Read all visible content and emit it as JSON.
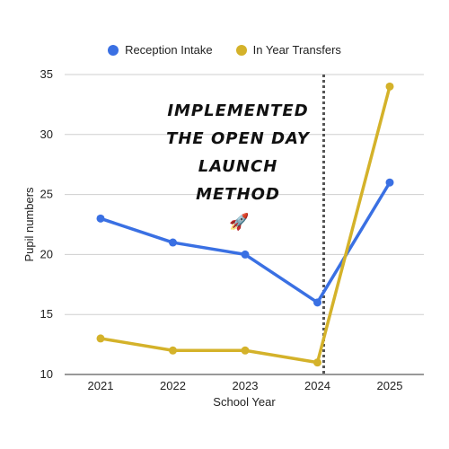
{
  "chart_data": {
    "type": "line",
    "title": "",
    "xlabel": "School Year",
    "ylabel": "Pupil numbers",
    "categories": [
      "2021",
      "2022",
      "2023",
      "2024",
      "2025"
    ],
    "ylim": [
      10,
      35
    ],
    "yticks": [
      10,
      15,
      20,
      25,
      30,
      35
    ],
    "grid": true,
    "legend_position": "top-center",
    "series": [
      {
        "name": "Reception Intake",
        "color": "#3a70e3",
        "values": [
          23,
          21,
          20,
          16,
          26
        ]
      },
      {
        "name": "In Year Transfers",
        "color": "#d4b22a",
        "values": [
          13,
          12,
          12,
          11,
          34
        ]
      }
    ],
    "annotation": {
      "lines": [
        "IMPLEMENTED",
        "THE OPEN DAY",
        "LAUNCH",
        "METHOD"
      ],
      "icon": "rocket-icon",
      "vertical_marker_at": "2024",
      "marker_style": "dotted"
    }
  }
}
